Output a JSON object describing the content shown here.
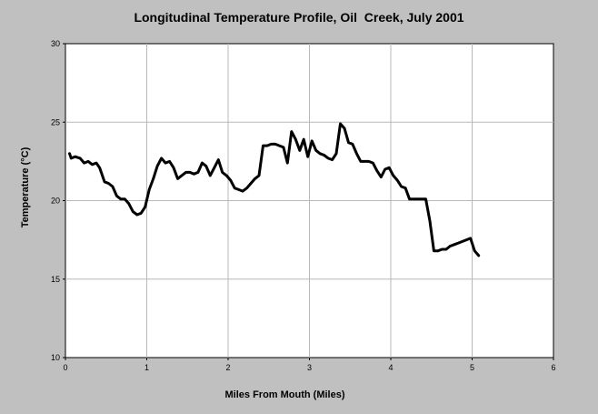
{
  "chart_data": {
    "type": "line",
    "title": "Longitudinal Temperature Profile, Oil  Creek, July 2001",
    "xlabel": "Miles From Mouth (Miles)",
    "ylabel": "Temperature (°C)",
    "xlim": [
      0,
      6
    ],
    "ylim": [
      10,
      30
    ],
    "xticks": [
      "0",
      "1",
      "2",
      "3",
      "4",
      "5",
      "6"
    ],
    "yticks": [
      "10",
      "15",
      "20",
      "25",
      "30"
    ],
    "grid": true,
    "series": [
      {
        "color": "#000000",
        "x": [
          0.05,
          0.07,
          0.12,
          0.18,
          0.23,
          0.28,
          0.33,
          0.38,
          0.42,
          0.48,
          0.53,
          0.58,
          0.63,
          0.68,
          0.73,
          0.78,
          0.83,
          0.88,
          0.93,
          0.98,
          1.03,
          1.08,
          1.13,
          1.18,
          1.23,
          1.28,
          1.33,
          1.38,
          1.43,
          1.48,
          1.53,
          1.58,
          1.63,
          1.68,
          1.73,
          1.78,
          1.83,
          1.88,
          1.93,
          1.98,
          2.03,
          2.08,
          2.13,
          2.18,
          2.23,
          2.28,
          2.33,
          2.38,
          2.43,
          2.48,
          2.53,
          2.58,
          2.63,
          2.68,
          2.73,
          2.78,
          2.83,
          2.88,
          2.93,
          2.98,
          3.03,
          3.08,
          3.13,
          3.18,
          3.23,
          3.28,
          3.33,
          3.38,
          3.43,
          3.48,
          3.53,
          3.58,
          3.63,
          3.68,
          3.73,
          3.78,
          3.83,
          3.88,
          3.93,
          3.98,
          4.03,
          4.08,
          4.13,
          4.18,
          4.23,
          4.28,
          4.33,
          4.38,
          4.43,
          4.48,
          4.53,
          4.58,
          4.63,
          4.68,
          4.73,
          4.78,
          4.83,
          4.88,
          4.93,
          4.98,
          5.03,
          5.08
        ],
        "values": [
          23.0,
          22.7,
          22.8,
          22.7,
          22.4,
          22.5,
          22.3,
          22.4,
          22.1,
          21.2,
          21.1,
          20.9,
          20.3,
          20.1,
          20.1,
          19.8,
          19.3,
          19.1,
          19.2,
          19.6,
          20.7,
          21.4,
          22.2,
          22.7,
          22.4,
          22.5,
          22.1,
          21.4,
          21.6,
          21.8,
          21.8,
          21.7,
          21.8,
          22.4,
          22.2,
          21.6,
          22.1,
          22.6,
          21.8,
          21.6,
          21.3,
          20.8,
          20.7,
          20.6,
          20.8,
          21.1,
          21.4,
          21.6,
          23.5,
          23.5,
          23.6,
          23.6,
          23.5,
          23.4,
          22.4,
          24.4,
          23.9,
          23.2,
          23.9,
          22.8,
          23.8,
          23.2,
          23.0,
          22.9,
          22.7,
          22.6,
          23.0,
          24.9,
          24.6,
          23.7,
          23.6,
          23.0,
          22.5,
          22.5,
          22.5,
          22.4,
          21.9,
          21.5,
          22.0,
          22.1,
          21.6,
          21.3,
          20.9,
          20.8,
          20.1,
          20.1,
          20.1,
          20.1,
          20.1,
          18.7,
          16.8,
          16.8,
          16.9,
          16.9,
          17.1,
          17.2,
          17.3,
          17.4,
          17.5,
          17.6,
          16.8,
          16.5
        ]
      }
    ]
  }
}
